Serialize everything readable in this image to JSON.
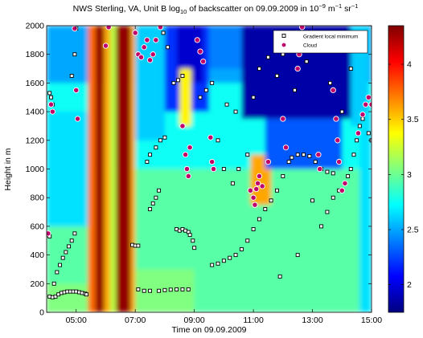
{
  "chart_data": {
    "type": "heatmap",
    "title": {
      "prefix": "NWS Sterling, VA, Unit B log",
      "sub": "10",
      "middle": " of backscatter on 09.09.2009 in 10",
      "exp1": "−9",
      "unit1": " m",
      "exp2": "−1",
      "unit2": " sr",
      "exp3": "−1"
    },
    "xlabel": "Time on 09.09.2009",
    "ylabel": "Height in m",
    "x_range_hours": [
      4.0,
      15.0
    ],
    "y_range_m": [
      0,
      2000
    ],
    "x_ticks": [
      {
        "value": 5,
        "label": "05:00"
      },
      {
        "value": 7,
        "label": "07:00"
      },
      {
        "value": 9,
        "label": "09:00"
      },
      {
        "value": 11,
        "label": "11:00"
      },
      {
        "value": 13,
        "label": "13:00"
      },
      {
        "value": 15,
        "label": "15:00"
      }
    ],
    "y_ticks": [
      {
        "value": 0,
        "label": "0"
      },
      {
        "value": 200,
        "label": "200"
      },
      {
        "value": 400,
        "label": "400"
      },
      {
        "value": 600,
        "label": "600"
      },
      {
        "value": 800,
        "label": "800"
      },
      {
        "value": 1000,
        "label": "1000"
      },
      {
        "value": 1200,
        "label": "1200"
      },
      {
        "value": 1400,
        "label": "1400"
      },
      {
        "value": 1600,
        "label": "1600"
      },
      {
        "value": 1800,
        "label": "1800"
      },
      {
        "value": 2000,
        "label": "2000"
      }
    ],
    "colorbar": {
      "colormap": "jet",
      "range": [
        1.75,
        4.35
      ],
      "ticks": [
        {
          "value": 2,
          "label": "2"
        },
        {
          "value": 2.5,
          "label": "2.5"
        },
        {
          "value": 3,
          "label": "3"
        },
        {
          "value": 3.5,
          "label": "3.5"
        },
        {
          "value": 4,
          "label": "4"
        }
      ]
    },
    "legend": {
      "placement": "top-right",
      "entries": [
        {
          "label": "Gradient local minimum",
          "marker": "square",
          "fill": "#ffffff",
          "edge": "#000000"
        },
        {
          "label": "Cloud",
          "marker": "circle",
          "fill": "#c0006a",
          "edge": "#ffffff"
        }
      ]
    },
    "heatmap_regions": [
      {
        "x": [
          4.0,
          15.0
        ],
        "y": [
          0,
          2000
        ],
        "value": 2.95
      },
      {
        "x": [
          4.0,
          15.0
        ],
        "y": [
          1000,
          2000
        ],
        "value": 2.75
      },
      {
        "x": [
          4.0,
          15.0
        ],
        "y": [
          1600,
          2000
        ],
        "value": 2.5
      },
      {
        "x": [
          4.0,
          5.4
        ],
        "y": [
          600,
          1400
        ],
        "value": 2.65
      },
      {
        "x": [
          4.0,
          5.4
        ],
        "y": [
          0,
          200
        ],
        "value": 3.05
      },
      {
        "x": [
          5.4,
          5.65
        ],
        "y": [
          0,
          2000
        ],
        "value": 3.75
      },
      {
        "x": [
          5.65,
          5.95
        ],
        "y": [
          0,
          2000
        ],
        "value": 4.3
      },
      {
        "x": [
          5.95,
          6.15
        ],
        "y": [
          0,
          2000
        ],
        "value": 3.6
      },
      {
        "x": [
          6.15,
          6.35
        ],
        "y": [
          0,
          2000
        ],
        "value": 3.2
      },
      {
        "x": [
          6.35,
          6.85
        ],
        "y": [
          0,
          2000
        ],
        "value": 4.3
      },
      {
        "x": [
          6.85,
          7.0
        ],
        "y": [
          0,
          2000
        ],
        "value": 3.6
      },
      {
        "x": [
          7.0,
          8.0
        ],
        "y": [
          1200,
          2000
        ],
        "value": 2.6
      },
      {
        "x": [
          7.0,
          9.0
        ],
        "y": [
          0,
          300
        ],
        "value": 3.05
      },
      {
        "x": [
          8.0,
          9.5
        ],
        "y": [
          1400,
          2000
        ],
        "value": 2.2
      },
      {
        "x": [
          8.4,
          9.3
        ],
        "y": [
          1600,
          2000
        ],
        "value": 1.95
      },
      {
        "x": [
          8.5,
          8.9
        ],
        "y": [
          1300,
          1700
        ],
        "value": 3.4
      },
      {
        "x": [
          9.5,
          10.6
        ],
        "y": [
          1700,
          2000
        ],
        "value": 2.4
      },
      {
        "x": [
          10.6,
          14.5
        ],
        "y": [
          1350,
          2000
        ],
        "value": 1.85
      },
      {
        "x": [
          10.9,
          11.6
        ],
        "y": [
          750,
          1100
        ],
        "value": 3.6
      },
      {
        "x": [
          11.4,
          14.0
        ],
        "y": [
          1000,
          1350
        ],
        "value": 2.3
      },
      {
        "x": [
          14.3,
          14.9
        ],
        "y": [
          1300,
          2000
        ],
        "value": 2.6
      },
      {
        "x": [
          14.6,
          15.0
        ],
        "y": [
          0,
          1400
        ],
        "value": 2.65
      }
    ],
    "series": [
      {
        "name": "Gradient local minimum",
        "marker": "square",
        "points": [
          [
            4.0,
            550
          ],
          [
            4.05,
            540
          ],
          [
            4.1,
            530
          ],
          [
            4.1,
            110
          ],
          [
            4.2,
            105
          ],
          [
            4.3,
            110
          ],
          [
            4.4,
            125
          ],
          [
            4.5,
            135
          ],
          [
            4.6,
            140
          ],
          [
            4.7,
            145
          ],
          [
            4.8,
            145
          ],
          [
            4.9,
            145
          ],
          [
            5.0,
            145
          ],
          [
            5.1,
            140
          ],
          [
            5.2,
            135
          ],
          [
            5.3,
            130
          ],
          [
            5.35,
            125
          ],
          [
            4.25,
            200
          ],
          [
            4.35,
            280
          ],
          [
            4.45,
            330
          ],
          [
            4.55,
            380
          ],
          [
            4.65,
            420
          ],
          [
            4.75,
            460
          ],
          [
            4.85,
            500
          ],
          [
            4.95,
            550
          ],
          [
            4.1,
            1530
          ],
          [
            4.15,
            1500
          ],
          [
            4.2,
            1450
          ],
          [
            4.22,
            1400
          ],
          [
            4.85,
            1650
          ],
          [
            4.95,
            1800
          ],
          [
            5.0,
            1980
          ],
          [
            6.9,
            470
          ],
          [
            7.0,
            465
          ],
          [
            7.1,
            465
          ],
          [
            7.1,
            160
          ],
          [
            7.3,
            150
          ],
          [
            7.5,
            150
          ],
          [
            7.8,
            150
          ],
          [
            8.0,
            155
          ],
          [
            8.2,
            158
          ],
          [
            8.4,
            160
          ],
          [
            8.6,
            160
          ],
          [
            8.8,
            160
          ],
          [
            7.5,
            720
          ],
          [
            7.6,
            760
          ],
          [
            7.7,
            800
          ],
          [
            7.8,
            850
          ],
          [
            7.4,
            1050
          ],
          [
            7.5,
            1100
          ],
          [
            7.7,
            1150
          ],
          [
            7.85,
            1200
          ],
          [
            8.0,
            1220
          ],
          [
            8.3,
            1600
          ],
          [
            8.45,
            1620
          ],
          [
            8.6,
            1650
          ],
          [
            8.4,
            580
          ],
          [
            8.5,
            570
          ],
          [
            8.6,
            580
          ],
          [
            8.7,
            570
          ],
          [
            8.8,
            560
          ],
          [
            8.85,
            540
          ],
          [
            8.95,
            500
          ],
          [
            9.0,
            450
          ],
          [
            9.6,
            330
          ],
          [
            9.8,
            340
          ],
          [
            10.0,
            360
          ],
          [
            10.2,
            380
          ],
          [
            10.4,
            400
          ],
          [
            10.6,
            440
          ],
          [
            10.8,
            500
          ],
          [
            11.0,
            580
          ],
          [
            11.2,
            650
          ],
          [
            11.4,
            720
          ],
          [
            11.6,
            780
          ],
          [
            11.8,
            850
          ],
          [
            12.0,
            950
          ],
          [
            12.2,
            1050
          ],
          [
            12.3,
            1080
          ],
          [
            12.5,
            1100
          ],
          [
            12.7,
            1100
          ],
          [
            12.9,
            1090
          ],
          [
            13.1,
            1050
          ],
          [
            13.3,
            1000
          ],
          [
            13.5,
            980
          ],
          [
            13.7,
            970
          ],
          [
            13.3,
            600
          ],
          [
            13.5,
            700
          ],
          [
            13.7,
            800
          ],
          [
            13.9,
            850
          ],
          [
            14.1,
            900
          ],
          [
            14.2,
            950
          ],
          [
            14.3,
            1000
          ],
          [
            14.4,
            1100
          ],
          [
            14.5,
            1200
          ],
          [
            14.6,
            1300
          ],
          [
            14.7,
            1350
          ],
          [
            14.9,
            1250
          ],
          [
            15.0,
            1200
          ],
          [
            9.2,
            1500
          ],
          [
            9.4,
            1550
          ],
          [
            9.6,
            1600
          ],
          [
            10.1,
            1450
          ],
          [
            10.4,
            1400
          ],
          [
            10.8,
            1100
          ],
          [
            11.0,
            1500
          ],
          [
            11.2,
            1700
          ],
          [
            11.5,
            1780
          ],
          [
            11.8,
            1650
          ],
          [
            12.0,
            1800
          ],
          [
            12.4,
            1550
          ],
          [
            12.8,
            1750
          ],
          [
            13.2,
            1850
          ],
          [
            13.6,
            1600
          ],
          [
            14.0,
            1400
          ],
          [
            14.3,
            1700
          ],
          [
            14.6,
            1900
          ],
          [
            10.3,
            900
          ],
          [
            10.5,
            1000
          ],
          [
            11.9,
            250
          ],
          [
            12.5,
            400
          ],
          [
            13.0,
            780
          ],
          [
            8.1,
            1850
          ],
          [
            7.95,
            1950
          ],
          [
            9.8,
            1200
          ],
          [
            10.0,
            1000
          ]
        ]
      },
      {
        "name": "Cloud",
        "marker": "circle",
        "points": [
          [
            4.05,
            550
          ],
          [
            4.15,
            1450
          ],
          [
            4.2,
            1400
          ],
          [
            4.95,
            1980
          ],
          [
            5.0,
            1550
          ],
          [
            5.05,
            1350
          ],
          [
            6.0,
            1860
          ],
          [
            6.1,
            1990
          ],
          [
            7.0,
            1950
          ],
          [
            7.1,
            1800
          ],
          [
            7.2,
            1780
          ],
          [
            7.3,
            1850
          ],
          [
            7.4,
            1900
          ],
          [
            7.5,
            1760
          ],
          [
            7.6,
            1800
          ],
          [
            7.7,
            1900
          ],
          [
            7.85,
            1990
          ],
          [
            8.6,
            1300
          ],
          [
            8.7,
            1100
          ],
          [
            8.75,
            1000
          ],
          [
            8.8,
            950
          ],
          [
            8.85,
            1150
          ],
          [
            9.1,
            1900
          ],
          [
            9.2,
            1820
          ],
          [
            9.3,
            1750
          ],
          [
            9.55,
            1220
          ],
          [
            9.6,
            1050
          ],
          [
            9.65,
            1000
          ],
          [
            10.9,
            850
          ],
          [
            11.0,
            800
          ],
          [
            11.05,
            750
          ],
          [
            11.1,
            860
          ],
          [
            11.15,
            900
          ],
          [
            11.2,
            950
          ],
          [
            11.3,
            880
          ],
          [
            11.5,
            1050
          ],
          [
            12.0,
            1350
          ],
          [
            12.1,
            1150
          ],
          [
            12.5,
            1700
          ],
          [
            12.55,
            1800
          ],
          [
            12.6,
            1900
          ],
          [
            12.65,
            1990
          ],
          [
            13.2,
            1100
          ],
          [
            13.25,
            1000
          ],
          [
            13.7,
            1550
          ],
          [
            13.8,
            1350
          ],
          [
            13.85,
            1200
          ],
          [
            13.9,
            1050
          ],
          [
            14.0,
            850
          ],
          [
            14.1,
            900
          ],
          [
            14.55,
            1250
          ],
          [
            14.7,
            1380
          ],
          [
            14.8,
            1450
          ],
          [
            14.9,
            1500
          ],
          [
            15.0,
            1450
          ]
        ]
      }
    ]
  }
}
